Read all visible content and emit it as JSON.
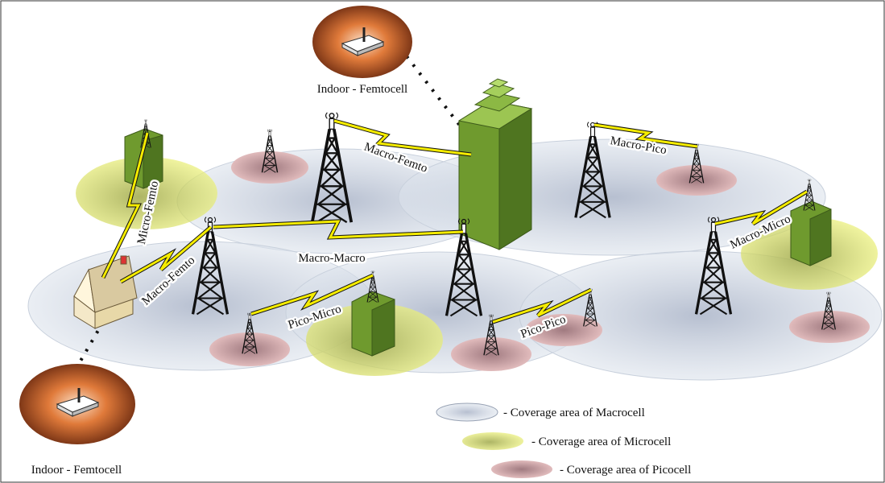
{
  "femtocells": [
    {
      "label": "Indoor - Femtocell"
    },
    {
      "label": "Indoor - Femtocell"
    }
  ],
  "links": [
    {
      "label": "Macro-Femto"
    },
    {
      "label": "Macro-Pico"
    },
    {
      "label": "Micro-Femto"
    },
    {
      "label": "Macro-Macro"
    },
    {
      "label": "Macro-Femto"
    },
    {
      "label": "Macro-Micro"
    },
    {
      "label": "Pico-Micro"
    },
    {
      "label": "Pico-Pico"
    }
  ],
  "legend": [
    {
      "label": "- Coverage area of Macrocell"
    },
    {
      "label": "- Coverage area of Microcell"
    },
    {
      "label": "- Coverage area of Picocell"
    }
  ]
}
